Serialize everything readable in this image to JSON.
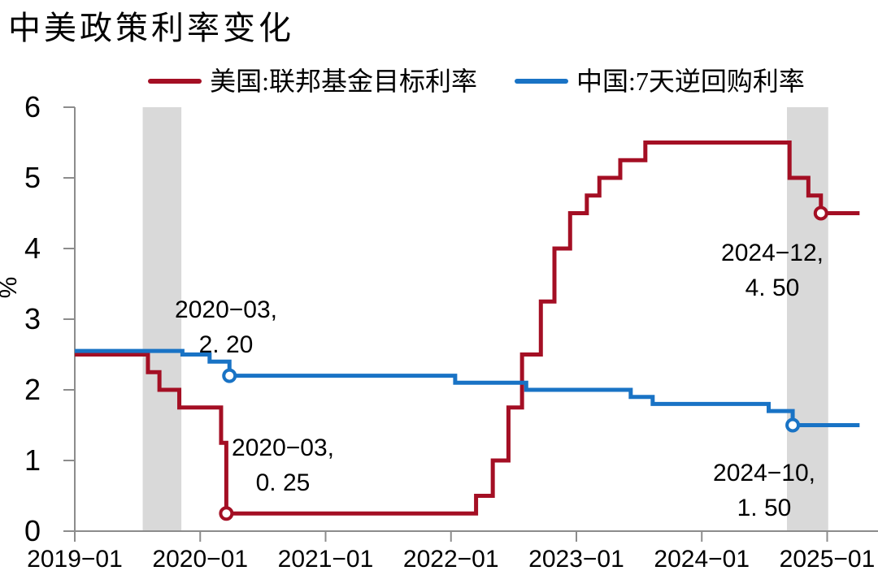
{
  "title": "中美政策利率变化",
  "legend": [
    {
      "label": "美国:联邦基金目标利率",
      "color": "#A40F24"
    },
    {
      "label": "中国:7天逆回购利率",
      "color": "#1973C5"
    }
  ],
  "colors": {
    "us_line": "#A40F24",
    "cn_line": "#1973C5",
    "shaded_band": "#D9D9D9",
    "axis": "#8C8C8C",
    "text": "#000000",
    "background": "#FFFFFF"
  },
  "chart_data": {
    "type": "line",
    "step": true,
    "title": "中美政策利率变化",
    "xlabel": "",
    "ylabel": "%",
    "ylim": [
      0,
      6
    ],
    "yticks": [
      0,
      1,
      2,
      3,
      4,
      5,
      6
    ],
    "x_unit": "months since 2019-01",
    "xticks": [
      {
        "t": 0,
        "label": "2019−01"
      },
      {
        "t": 12,
        "label": "2020−01"
      },
      {
        "t": 24,
        "label": "2021−01"
      },
      {
        "t": 36,
        "label": "2022−01"
      },
      {
        "t": 48,
        "label": "2023−01"
      },
      {
        "t": 60,
        "label": "2024−01"
      },
      {
        "t": 72,
        "label": "2025−01"
      }
    ],
    "grid": false,
    "legend_position": "top-center",
    "shaded_bands": [
      {
        "t0": 6.5,
        "t1": 10.2
      },
      {
        "t0": 68.15,
        "t1": 72.1
      }
    ],
    "series": [
      {
        "name": "美国:联邦基金目标利率",
        "color": "#A40F24",
        "points": [
          {
            "t": 0.0,
            "date": "2019-01",
            "value": 2.5
          },
          {
            "t": 7.0,
            "date": "2019-08",
            "value": 2.25
          },
          {
            "t": 8.1,
            "date": "2019-09",
            "value": 2.0
          },
          {
            "t": 10.0,
            "date": "2019-11",
            "value": 1.75
          },
          {
            "t": 14.0,
            "date": "2020-03",
            "value": 1.25
          },
          {
            "t": 14.5,
            "date": "2020-03",
            "value": 0.25
          },
          {
            "t": 38.4,
            "date": "2022-03",
            "value": 0.5
          },
          {
            "t": 40.0,
            "date": "2022-05",
            "value": 1.0
          },
          {
            "t": 41.5,
            "date": "2022-06",
            "value": 1.75
          },
          {
            "t": 42.8,
            "date": "2022-07",
            "value": 2.5
          },
          {
            "t": 44.6,
            "date": "2022-09",
            "value": 3.25
          },
          {
            "t": 45.9,
            "date": "2022-11",
            "value": 4.0
          },
          {
            "t": 47.4,
            "date": "2022-12",
            "value": 4.5
          },
          {
            "t": 49.0,
            "date": "2023-02",
            "value": 4.75
          },
          {
            "t": 50.2,
            "date": "2023-03",
            "value": 5.0
          },
          {
            "t": 52.2,
            "date": "2023-05",
            "value": 5.25
          },
          {
            "t": 54.6,
            "date": "2023-07",
            "value": 5.5
          },
          {
            "t": 68.4,
            "date": "2024-09",
            "value": 5.0
          },
          {
            "t": 70.2,
            "date": "2024-11",
            "value": 4.75
          },
          {
            "t": 71.4,
            "date": "2024-12",
            "value": 4.5
          },
          {
            "t": 75.1,
            "date": null,
            "value": 4.5
          }
        ]
      },
      {
        "name": "中国:7天逆回购利率",
        "color": "#1973C5",
        "points": [
          {
            "t": 0.0,
            "date": "2019-01",
            "value": 2.55
          },
          {
            "t": 10.3,
            "date": "2019-11",
            "value": 2.5
          },
          {
            "t": 12.9,
            "date": "2020-02",
            "value": 2.4
          },
          {
            "t": 14.8,
            "date": "2020-03",
            "value": 2.2
          },
          {
            "t": 36.4,
            "date": "2022-01",
            "value": 2.1
          },
          {
            "t": 43.2,
            "date": "2022-08",
            "value": 2.0
          },
          {
            "t": 53.2,
            "date": "2023-06",
            "value": 1.9
          },
          {
            "t": 55.3,
            "date": "2023-08",
            "value": 1.8
          },
          {
            "t": 66.4,
            "date": "2024-07",
            "value": 1.7
          },
          {
            "t": 68.7,
            "date": "2024-10",
            "value": 1.5
          },
          {
            "t": 75.1,
            "date": null,
            "value": 1.5
          }
        ]
      }
    ],
    "markers": [
      {
        "series": 0,
        "t": 14.5,
        "date": "2020-03",
        "value": 0.25,
        "label_lines": [
          "2020−03,",
          "0. 25"
        ]
      },
      {
        "series": 0,
        "t": 71.4,
        "date": "2024-12",
        "value": 4.5,
        "label_lines": [
          "2024−12,",
          "4. 50"
        ]
      },
      {
        "series": 1,
        "t": 14.8,
        "date": "2020-03",
        "value": 2.2,
        "label_lines": [
          "2020−03,",
          "2. 20"
        ]
      },
      {
        "series": 1,
        "t": 68.7,
        "date": "2024-10",
        "value": 1.5,
        "label_lines": [
          "2024−10,",
          "1. 50"
        ]
      }
    ]
  }
}
